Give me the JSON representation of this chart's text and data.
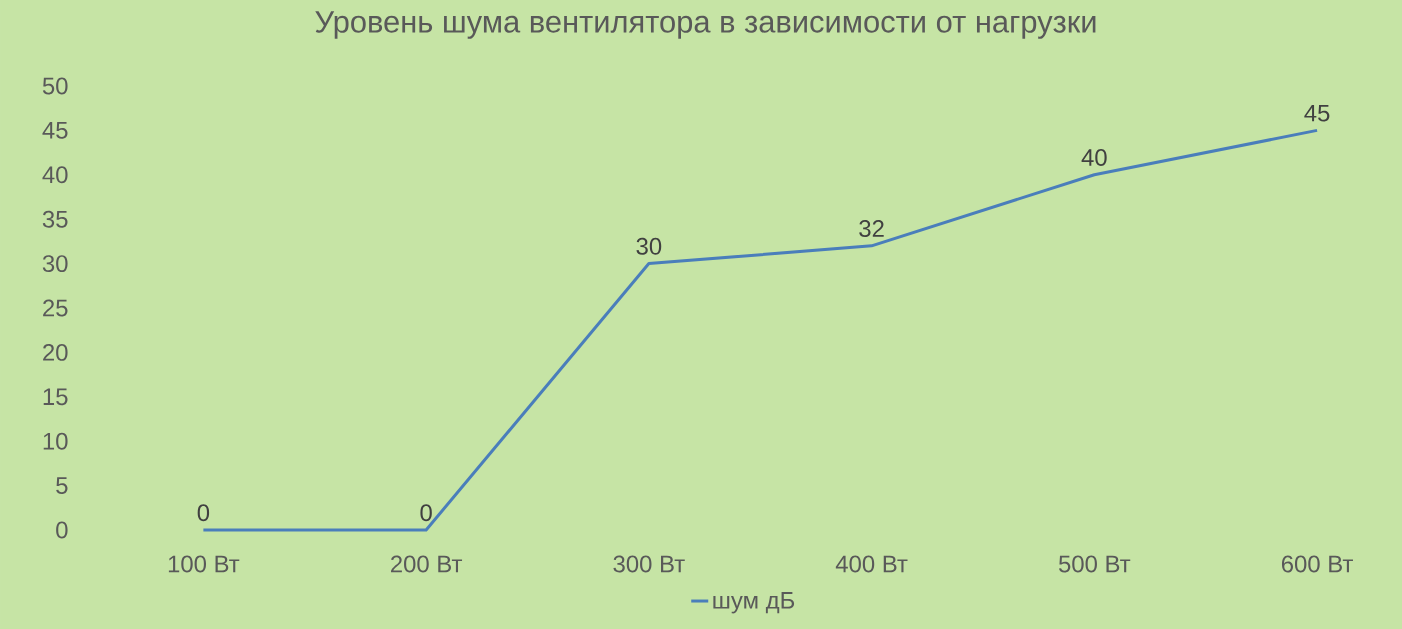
{
  "chart_data": {
    "type": "line",
    "title": "Уровень шума вентилятора в зависимости от нагрузки",
    "categories": [
      "100 Вт",
      "200 Вт",
      "300 Вт",
      "400 Вт",
      "500 Вт",
      "600 Вт"
    ],
    "series": [
      {
        "name": "шум дБ",
        "color": "#4a7ebb",
        "values": [
          0,
          0,
          30,
          32,
          40,
          45
        ]
      }
    ],
    "ylim": [
      0,
      50
    ],
    "yticks": [
      0,
      5,
      10,
      15,
      20,
      25,
      30,
      35,
      40,
      45,
      50
    ],
    "data_labels": true,
    "legend": "bottom",
    "grid": false,
    "marker": "none",
    "line_style": "solid"
  }
}
